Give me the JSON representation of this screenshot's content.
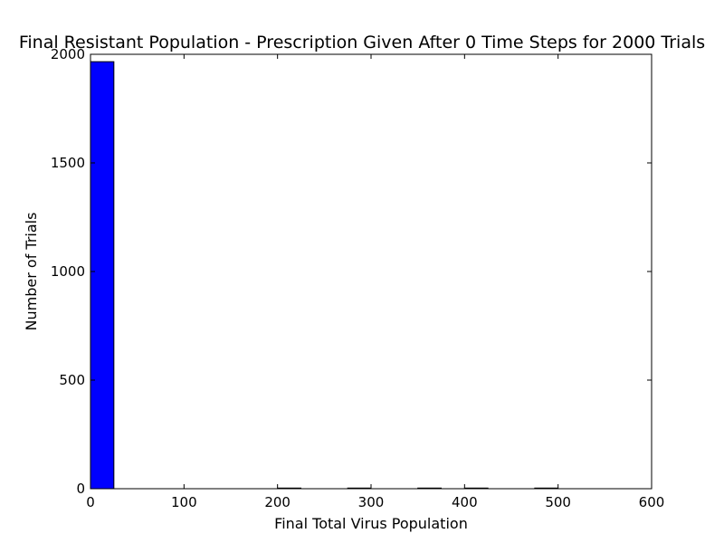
{
  "chart_data": {
    "type": "bar",
    "title": "Final Resistant Population - Prescription Given After 0 Time Steps for 2000 Trials",
    "xlabel": "Final Total Virus Population",
    "ylabel": "Number of Trials",
    "xlim": [
      0,
      600
    ],
    "ylim": [
      0,
      2000
    ],
    "xticks": [
      "0",
      "100",
      "200",
      "300",
      "400",
      "500",
      "600"
    ],
    "yticks": [
      "0",
      "500",
      "1000",
      "1500",
      "2000"
    ],
    "bin_width": 25,
    "bars": [
      {
        "x0": 0,
        "x1": 25,
        "count": 1966
      },
      {
        "x0": 200,
        "x1": 225,
        "count": 3
      },
      {
        "x0": 275,
        "x1": 300,
        "count": 3
      },
      {
        "x0": 350,
        "x1": 375,
        "count": 3
      },
      {
        "x0": 400,
        "x1": 425,
        "count": 3
      },
      {
        "x0": 475,
        "x1": 500,
        "count": 3
      }
    ],
    "bar_color": "#0000ff",
    "grid": false,
    "legend": "none"
  }
}
